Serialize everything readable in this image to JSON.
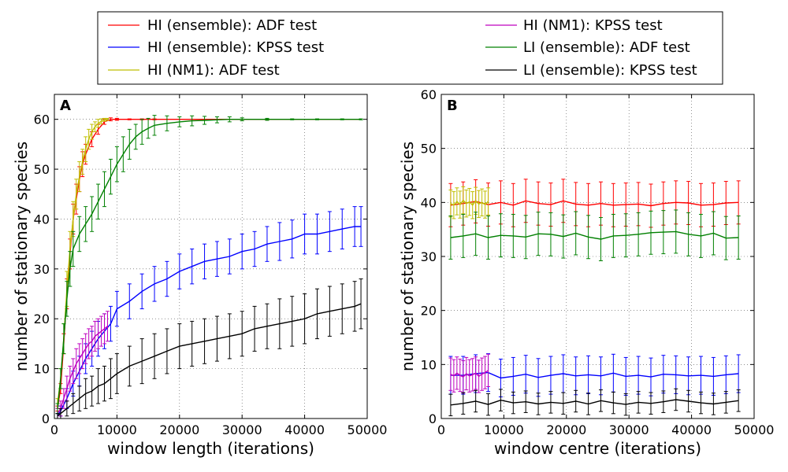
{
  "chart_data": [
    {
      "type": "line",
      "panel_label": "A",
      "xlabel": "window length (iterations)",
      "ylabel": "number of stationary species",
      "xlim": [
        0,
        50000
      ],
      "ylim": [
        0,
        65
      ],
      "xticks": [
        0,
        10000,
        20000,
        30000,
        40000,
        50000
      ],
      "yticks": [
        0,
        10,
        20,
        30,
        40,
        50,
        60
      ],
      "grid": true,
      "series": [
        {
          "name": "HI (ensemble): ADF test",
          "color": "#ff0000",
          "x": [
            500,
            1000,
            1500,
            2000,
            2500,
            3000,
            3500,
            4000,
            4500,
            5000,
            6000,
            7000,
            8000,
            9000,
            10000,
            12000,
            14000,
            16000,
            18000,
            20000,
            24000,
            28000,
            32000,
            36000,
            40000,
            45000,
            49000
          ],
          "y": [
            2,
            6,
            15,
            25,
            33,
            40,
            44,
            48,
            51,
            53,
            56,
            58,
            59.5,
            60,
            60,
            60,
            60,
            60,
            60,
            60,
            60,
            60,
            60,
            60,
            60,
            60,
            60
          ],
          "err": [
            0.5,
            1,
            2,
            3,
            3,
            3,
            3,
            2.5,
            2.5,
            2,
            1.5,
            1,
            0.5,
            0.3,
            0.2,
            0.1,
            0.1,
            0.1,
            0,
            0,
            0,
            0,
            0,
            0,
            0,
            0,
            0
          ]
        },
        {
          "name": "HI (ensemble): KPSS test",
          "color": "#0000ff",
          "x": [
            500,
            1000,
            2000,
            3000,
            4000,
            5000,
            6000,
            7000,
            8000,
            9000,
            10000,
            12000,
            14000,
            16000,
            18000,
            20000,
            22000,
            24000,
            26000,
            28000,
            30000,
            32000,
            34000,
            36000,
            38000,
            40000,
            42000,
            44000,
            46000,
            48000,
            49000
          ],
          "y": [
            0.5,
            1.5,
            4,
            7,
            9.5,
            12,
            14,
            16,
            17.5,
            19,
            22,
            23.5,
            25.5,
            27,
            28,
            29.5,
            30.5,
            31.5,
            32,
            32.5,
            33.5,
            34,
            35,
            35.5,
            36,
            37,
            37,
            37.5,
            38,
            38.5,
            38.5
          ],
          "err": [
            0.5,
            1,
            2,
            2.5,
            3,
            3,
            3.5,
            3.5,
            3.5,
            3.5,
            3.5,
            3.5,
            3.5,
            3.5,
            3.5,
            3.5,
            3.5,
            3.5,
            3.5,
            3.5,
            3.5,
            3.5,
            3.5,
            3.8,
            3.8,
            4,
            4,
            4,
            4,
            4,
            4
          ]
        },
        {
          "name": "HI (NM1): ADF test",
          "color": "#bfbf00",
          "x": [
            500,
            1000,
            1500,
            2000,
            2500,
            3000,
            3500,
            4000,
            4500,
            5000,
            5500,
            6000,
            6500,
            7000,
            7500,
            8000,
            8500
          ],
          "y": [
            3,
            8,
            16,
            26,
            34,
            40,
            45,
            48.5,
            51.5,
            54,
            56,
            57.5,
            58.5,
            59.2,
            59.6,
            59.9,
            60
          ],
          "err": [
            1,
            2,
            3,
            3.5,
            3.5,
            3.5,
            3,
            3,
            2.5,
            2.5,
            2,
            1.5,
            1,
            0.8,
            0.5,
            0.3,
            0.2
          ]
        },
        {
          "name": "HI (NM1): KPSS test",
          "color": "#bf00bf",
          "x": [
            500,
            1000,
            1500,
            2000,
            2500,
            3000,
            3500,
            4000,
            4500,
            5000,
            5500,
            6000,
            6500,
            7000,
            7500,
            8000,
            8500
          ],
          "y": [
            1,
            2,
            4,
            6,
            8,
            9.5,
            11,
            12,
            13,
            14,
            15,
            15.5,
            16.5,
            17,
            17.5,
            18,
            18.5
          ],
          "err": [
            1,
            1.5,
            2,
            2.5,
            2.5,
            2.5,
            3,
            3,
            3,
            3,
            3,
            3,
            3,
            3,
            3,
            3,
            3
          ]
        },
        {
          "name": "LI (ensemble): ADF test",
          "color": "#008000",
          "x": [
            500,
            1000,
            1500,
            2000,
            2500,
            3000,
            4000,
            5000,
            6000,
            7000,
            8000,
            9000,
            10000,
            11000,
            12000,
            13000,
            14000,
            15000,
            16000,
            18000,
            20000,
            22000,
            24000,
            26000,
            28000,
            30000,
            34000,
            38000,
            42000,
            46000,
            49000
          ],
          "y": [
            2,
            8,
            16,
            24,
            30,
            34,
            37,
            39,
            41,
            43.5,
            46,
            48.5,
            51,
            53,
            55,
            56.5,
            57.5,
            58.2,
            58.8,
            59.2,
            59.5,
            59.7,
            59.8,
            59.9,
            60,
            60,
            60,
            60,
            60,
            60,
            60
          ],
          "err": [
            1,
            2,
            3,
            3.5,
            3.5,
            3.5,
            3.5,
            3.5,
            3.5,
            3.5,
            3.5,
            3.5,
            3.5,
            3.5,
            3,
            2.5,
            2.5,
            2,
            2,
            1.5,
            1,
            1,
            0.8,
            0.6,
            0.5,
            0.3,
            0.2,
            0.1,
            0.1,
            0.1,
            0.1
          ]
        },
        {
          "name": "LI (ensemble): KPSS test",
          "color": "#000000",
          "x": [
            500,
            1000,
            2000,
            3000,
            4000,
            5000,
            6000,
            7000,
            8000,
            9000,
            10000,
            12000,
            14000,
            16000,
            18000,
            20000,
            22000,
            24000,
            26000,
            28000,
            30000,
            32000,
            34000,
            36000,
            38000,
            40000,
            42000,
            44000,
            46000,
            48000,
            49000
          ],
          "y": [
            0.5,
            1,
            2,
            3,
            4,
            5,
            5.5,
            6.5,
            7,
            8,
            9,
            10.5,
            11.5,
            12.5,
            13.5,
            14.5,
            15,
            15.5,
            16,
            16.5,
            17,
            18,
            18.5,
            19,
            19.5,
            20,
            21,
            21.5,
            22,
            22.5,
            23
          ],
          "err": [
            0.5,
            1,
            1.5,
            2,
            2.5,
            3,
            3,
            3.5,
            3.5,
            4,
            4,
            4,
            4.5,
            4.5,
            4.5,
            4.5,
            4.5,
            4.5,
            4.5,
            4.5,
            4.5,
            4.5,
            4.5,
            5,
            5,
            5,
            5,
            5,
            5,
            5,
            5
          ]
        }
      ]
    },
    {
      "type": "line",
      "panel_label": "B",
      "xlabel": "window centre (iterations)",
      "ylabel": "number of stationary species",
      "xlim": [
        0,
        50000
      ],
      "ylim": [
        0,
        60
      ],
      "xticks": [
        0,
        10000,
        20000,
        30000,
        40000,
        50000
      ],
      "yticks": [
        0,
        10,
        20,
        30,
        40,
        50,
        60
      ],
      "grid": true,
      "series": [
        {
          "name": "HI (ensemble): ADF test",
          "color": "#ff0000",
          "x": [
            1500,
            3500,
            5500,
            7500,
            9500,
            11500,
            13500,
            15500,
            17500,
            19500,
            21500,
            23500,
            25500,
            27500,
            29500,
            31500,
            33500,
            35500,
            37500,
            39500,
            41500,
            43500,
            45500,
            47500
          ],
          "y": [
            39.5,
            39.8,
            40.2,
            39.6,
            40,
            39.5,
            40.3,
            39.8,
            39.6,
            40.3,
            39.7,
            39.5,
            39.8,
            39.5,
            39.6,
            39.7,
            39.4,
            39.8,
            40,
            39.9,
            39.5,
            39.6,
            39.9,
            40
          ],
          "err": [
            4,
            4,
            4,
            4,
            4,
            4,
            4,
            4,
            4,
            4,
            4,
            4,
            4,
            4,
            4,
            4,
            4,
            4,
            4,
            4,
            4,
            4,
            4,
            4
          ]
        },
        {
          "name": "HI (ensemble): KPSS test",
          "color": "#0000ff",
          "x": [
            1500,
            3500,
            5500,
            7500,
            9500,
            11500,
            13500,
            15500,
            17500,
            19500,
            21500,
            23500,
            25500,
            27500,
            29500,
            31500,
            33500,
            35500,
            37500,
            39500,
            41500,
            43500,
            45500,
            47500
          ],
          "y": [
            8,
            8,
            8.3,
            8.5,
            7.5,
            7.8,
            8.2,
            7.6,
            8,
            8.3,
            7.9,
            8.1,
            7.9,
            8.4,
            7.8,
            8,
            7.7,
            8.2,
            8.1,
            7.9,
            8,
            7.8,
            8.1,
            8.3
          ],
          "err": [
            3.5,
            3.5,
            3.5,
            3.5,
            3.5,
            3.5,
            3.5,
            3.5,
            3.5,
            3.5,
            3.5,
            3.5,
            3.5,
            3.5,
            3.5,
            3.5,
            3.5,
            3.5,
            3.5,
            3.5,
            3.5,
            3.5,
            3.5,
            3.5
          ]
        },
        {
          "name": "HI (NM1): ADF test",
          "color": "#bfbf00",
          "x": [
            1500,
            2000,
            2500,
            3000,
            3500,
            4000,
            4500,
            5000,
            5500,
            6000,
            6500,
            7000,
            7500
          ],
          "y": [
            39.8,
            39.5,
            40.2,
            39.6,
            40.4,
            39.8,
            40.1,
            39.5,
            40.3,
            39.7,
            40,
            39.6,
            40.2
          ],
          "err": [
            2.5,
            2.5,
            2.5,
            2.5,
            2.5,
            2.5,
            2.5,
            2.5,
            2.5,
            2.5,
            2.5,
            2.5,
            2.5
          ]
        },
        {
          "name": "HI (NM1): KPSS test",
          "color": "#bf00bf",
          "x": [
            1500,
            2000,
            2500,
            3000,
            3500,
            4000,
            4500,
            5000,
            5500,
            6000,
            6500,
            7000,
            7500
          ],
          "y": [
            8.2,
            7.9,
            8.4,
            8,
            7.7,
            8.3,
            7.9,
            8.1,
            8.4,
            7.8,
            8.2,
            8.5,
            8.9
          ],
          "err": [
            3,
            3,
            3,
            3,
            3,
            3,
            3,
            3,
            3,
            3,
            3,
            3,
            3
          ]
        },
        {
          "name": "LI (ensemble): ADF test",
          "color": "#008000",
          "x": [
            1500,
            3500,
            5500,
            7500,
            9500,
            11500,
            13500,
            15500,
            17500,
            19500,
            21500,
            23500,
            25500,
            27500,
            29500,
            31500,
            33500,
            35500,
            37500,
            39500,
            41500,
            43500,
            45500,
            47500
          ],
          "y": [
            33.5,
            33.8,
            34.2,
            33.5,
            33.9,
            33.8,
            33.6,
            34.2,
            34.1,
            33.7,
            34.3,
            33.6,
            33.2,
            33.8,
            33.9,
            34.1,
            34.4,
            34.5,
            34.6,
            34.1,
            33.8,
            34.3,
            33.4,
            33.5
          ],
          "err": [
            4,
            4,
            4,
            4,
            4,
            4,
            4,
            4,
            4,
            4,
            4,
            4,
            4,
            4,
            4,
            4,
            4,
            4,
            4,
            4,
            4,
            4,
            4,
            4
          ]
        },
        {
          "name": "LI (ensemble): KPSS test",
          "color": "#000000",
          "x": [
            1500,
            3500,
            5500,
            7500,
            9500,
            11500,
            13500,
            15500,
            17500,
            19500,
            21500,
            23500,
            25500,
            27500,
            29500,
            31500,
            33500,
            35500,
            37500,
            39500,
            41500,
            43500,
            45500,
            47500
          ],
          "y": [
            2.5,
            2.8,
            3.2,
            2.6,
            3.4,
            2.9,
            3.1,
            2.7,
            3,
            2.8,
            3.2,
            2.7,
            3.3,
            2.9,
            2.6,
            3,
            2.8,
            3.1,
            3.5,
            3.2,
            2.9,
            2.7,
            3,
            3.3
          ],
          "err": [
            2,
            2,
            2,
            2,
            2,
            2,
            2,
            2,
            2,
            2,
            2,
            2,
            2,
            2,
            2,
            2,
            2,
            2,
            2,
            2,
            2,
            2,
            2,
            2
          ]
        }
      ]
    }
  ],
  "legend": {
    "entries": [
      {
        "label": "HI (ensemble): ADF test",
        "color": "#ff0000"
      },
      {
        "label": "HI (ensemble): KPSS test",
        "color": "#0000ff"
      },
      {
        "label": "HI (NM1): ADF test",
        "color": "#bfbf00"
      },
      {
        "label": "HI (NM1): KPSS test",
        "color": "#bf00bf"
      },
      {
        "label": "LI (ensemble): ADF test",
        "color": "#008000"
      },
      {
        "label": "LI (ensemble): KPSS test",
        "color": "#000000"
      }
    ]
  }
}
